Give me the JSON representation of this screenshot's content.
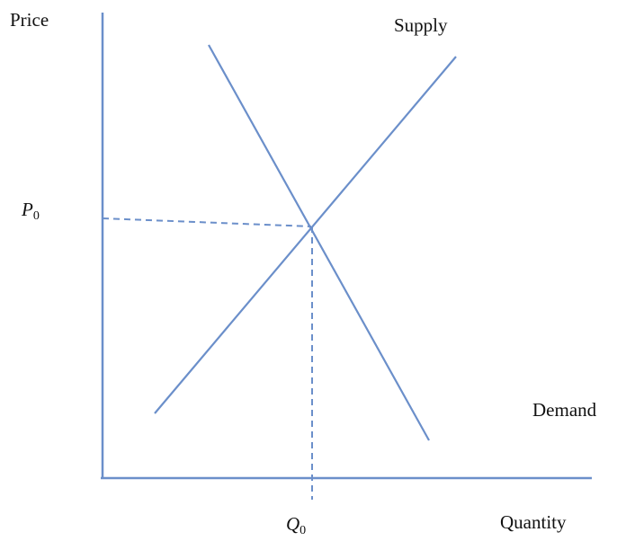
{
  "diagram": {
    "y_axis_label": "Price",
    "x_axis_label": "Quantity",
    "supply_label": "Supply",
    "demand_label": "Demand",
    "price_marker": {
      "letter": "P",
      "subscript": "0"
    },
    "quantity_marker": {
      "letter": "Q",
      "subscript": "0"
    }
  }
}
